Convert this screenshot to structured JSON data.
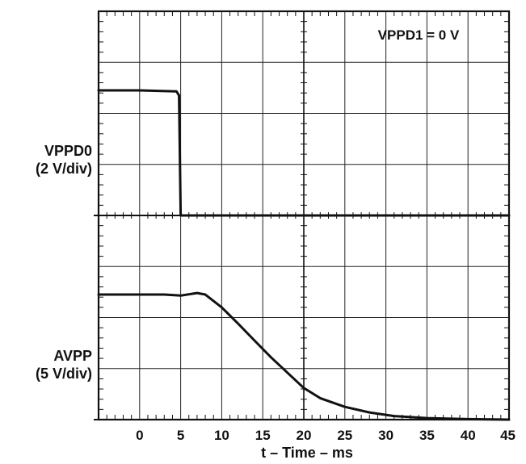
{
  "chart_data": {
    "type": "line",
    "xlabel": "t – Time – ms",
    "xlim": [
      -5,
      45
    ],
    "x_ticks": [
      0,
      5,
      10,
      15,
      20,
      25,
      30,
      35,
      40,
      45
    ],
    "x_tick_labels": [
      "0",
      "5",
      "10",
      "15",
      "20",
      "25",
      "30",
      "35",
      "40",
      "45"
    ],
    "grid": true,
    "annotation": "VPPD1 = 0 V",
    "panels": [
      {
        "label_line1": "VPPD0",
        "label_line2": "(2 V/div)",
        "scale_per_div": "2 V/div",
        "ydivs": 4,
        "trace_divs": [
          [
            -5,
            2.45
          ],
          [
            0,
            2.45
          ],
          [
            4.5,
            2.43
          ],
          [
            4.8,
            2.35
          ],
          [
            5.0,
            0.0
          ],
          [
            45,
            0.0
          ]
        ]
      },
      {
        "label_line1": "AVPP",
        "label_line2": "(5 V/div)",
        "scale_per_div": "5 V/div",
        "ydivs": 4,
        "trace_divs": [
          [
            -5,
            2.45
          ],
          [
            0,
            2.45
          ],
          [
            3,
            2.45
          ],
          [
            5,
            2.43
          ],
          [
            7,
            2.48
          ],
          [
            8,
            2.45
          ],
          [
            10,
            2.2
          ],
          [
            12,
            1.88
          ],
          [
            14,
            1.55
          ],
          [
            16,
            1.22
          ],
          [
            18,
            0.92
          ],
          [
            20,
            0.62
          ],
          [
            22,
            0.42
          ],
          [
            25,
            0.25
          ],
          [
            28,
            0.14
          ],
          [
            31,
            0.07
          ],
          [
            35,
            0.03
          ],
          [
            40,
            0.01
          ],
          [
            45,
            0.0
          ]
        ]
      }
    ]
  }
}
